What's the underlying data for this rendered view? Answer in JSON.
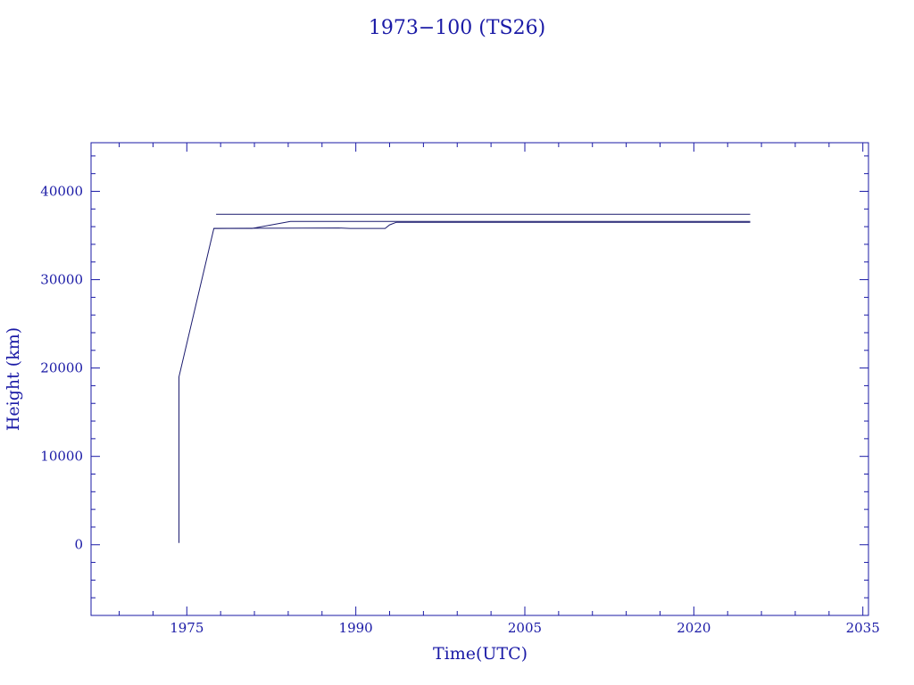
{
  "chart_data": {
    "type": "line",
    "title": "1973−100 (TS26)",
    "xlabel": "Time(UTC)",
    "ylabel": "Height (km)",
    "xlim": [
      1966.5,
      2035.5
    ],
    "ylim": [
      -8000,
      45500
    ],
    "x_ticks": [
      1975,
      1990,
      2005,
      2020,
      2035
    ],
    "y_ticks": [
      0,
      10000,
      20000,
      30000,
      40000
    ],
    "grid": false,
    "legend": "none",
    "colors": {
      "text": "#1a1aa6",
      "line": "#1a1a6e"
    },
    "series": [
      {
        "values": [
          [
            1974.3,
            200
          ],
          [
            1974.3,
            19000
          ],
          [
            1977.4,
            35800
          ],
          [
            1979.5,
            35800
          ],
          [
            1980.8,
            35800
          ],
          [
            1984.2,
            36600
          ],
          [
            1992.0,
            36600
          ],
          [
            2025.0,
            36600
          ]
        ]
      },
      {
        "values": [
          [
            1977.4,
            35800
          ],
          [
            1988.5,
            35850
          ],
          [
            1989.5,
            35800
          ],
          [
            1992.6,
            35800
          ],
          [
            1993.0,
            36200
          ],
          [
            1993.6,
            36500
          ],
          [
            2025.0,
            36500
          ]
        ]
      },
      {
        "values": [
          [
            1977.6,
            37400
          ],
          [
            2025.0,
            37400
          ]
        ]
      }
    ]
  }
}
